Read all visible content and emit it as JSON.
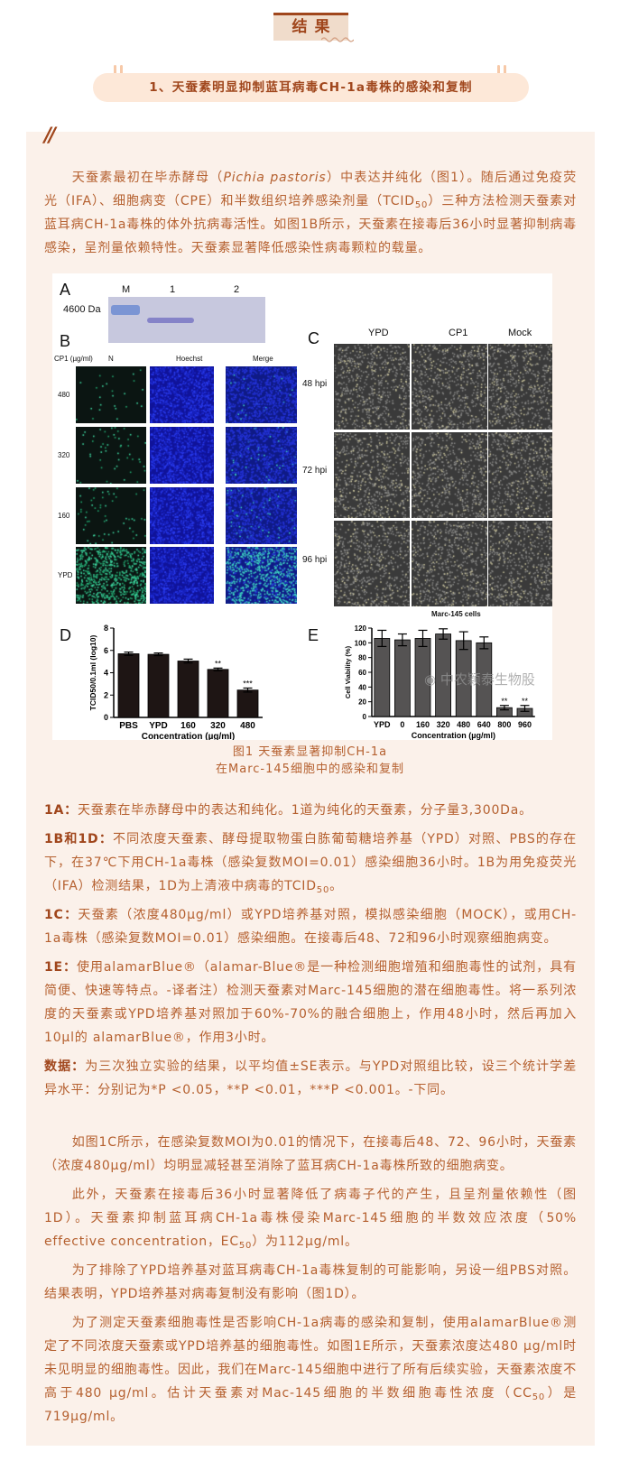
{
  "section_title": "结果",
  "subtitle": "1、天蚕素明显抑制蓝耳病毒CH-1a毒株的感染和复制",
  "quote_mark": "//",
  "intro": [
    "天蚕素最初在毕赤酵母（",
    "Pichia pastoris",
    "）中表达并纯化（图1）。随后通过免疫荧光（IFA）、细胞病变（CPE）和半数组织培养感染剂量（TCID",
    "50",
    "）三种方法检测天蚕素对蓝耳病CH-1a毒株的体外抗病毒活性。如图1B所示，天蚕素在接毒后36小时显著抑制病毒感染，呈剂量依赖特性。天蚕素显著降低感染性病毒颗粒的载量。"
  ],
  "figure": {
    "panel_a": {
      "label": "A",
      "lanes": [
        "M",
        "1",
        "2"
      ],
      "marker": "4600 Da"
    },
    "panel_b": {
      "label": "B",
      "row_header": "CP1 (µg/ml)",
      "columns": [
        "N",
        "Hoechst",
        "Merge"
      ],
      "rows": [
        "480",
        "320",
        "160",
        "YPD"
      ]
    },
    "panel_c": {
      "label": "C",
      "columns": [
        "YPD",
        "CP1",
        "Mock"
      ],
      "rows": [
        "48 hpi",
        "72 hpi",
        "96 hpi"
      ],
      "footer": "Marc-145 cells"
    },
    "watermark": "中农颖泰生物股"
  },
  "chart_data": [
    {
      "type": "bar",
      "panel": "D",
      "categories": [
        "PBS",
        "YPD",
        "160",
        "320",
        "480"
      ],
      "values": [
        5.7,
        5.65,
        5.05,
        4.3,
        2.45
      ],
      "errors": [
        0.15,
        0.12,
        0.17,
        0.12,
        0.18
      ],
      "significance": [
        "",
        "",
        "",
        "**",
        "***"
      ],
      "xlabel": "Concentration (µg/ml)",
      "ylabel": "TCID50/0.1ml (log10)",
      "ylim": [
        0,
        8
      ],
      "yticks": [
        "0",
        "2",
        "4",
        "6",
        "8"
      ],
      "bar_color": "#1e1514"
    },
    {
      "type": "bar",
      "panel": "E",
      "categories": [
        "YPD",
        "0",
        "160",
        "320",
        "480",
        "640",
        "800",
        "960"
      ],
      "values": [
        106,
        104,
        106,
        112,
        103,
        100,
        12,
        11
      ],
      "errors": [
        11,
        8,
        11,
        7,
        12,
        8,
        3,
        4
      ],
      "significance": [
        "",
        "",
        "",
        "",
        "",
        "",
        "**",
        "**"
      ],
      "xlabel": "Concentration (µg/ml)",
      "ylabel": "Cell Viability (%)",
      "ylim": [
        0,
        120
      ],
      "yticks": [
        "0",
        "20",
        "40",
        "60",
        "80",
        "100",
        "120"
      ],
      "bar_color": "#555353"
    }
  ],
  "caption": [
    "图1 天蚕素显著抑制CH-1a",
    "在Marc-145细胞中的感染和复制"
  ],
  "notes": {
    "a": {
      "label": "1A：",
      "text": "天蚕素在毕赤酵母中的表达和纯化。1道为纯化的天蚕素，分子量3,300Da。"
    },
    "bd": {
      "label": "1B和1D：",
      "text": "不同浓度天蚕素、酵母提取物蛋白胨葡萄糖培养基（YPD）对照、PBS的存在下，在37℃下用CH-1a毒株（感染复数MOI=0.01）感染细胞36小时。1B为用免疫荧光（IFA）检测结果，1D为上清液中病毒的TCID",
      "sub": "50",
      "end": "。"
    },
    "c": {
      "label": "1C：",
      "text": "天蚕素（浓度480μg/ml）或YPD培养基对照，模拟感染细胞（MOCK），或用CH-1a毒株（感染复数MOI=0.01）感染细胞。在接毒后48、72和96小时观察细胞病变。"
    },
    "e": {
      "label": "1E：",
      "text": "使用alamarBlue®（alamar-Blue®是一种检测细胞增殖和细胞毒性的试剂，具有简便、快速等特点。-译者注）检测天蚕素对Marc-145细胞的潜在细胞毒性。将一系列浓度的天蚕素或YPD培养基对照加于60%-70%的融合细胞上，作用48小时，然后再加入10μl的 alamarBlue®，作用3小时。"
    },
    "data": {
      "label": "数据：",
      "text": "为三次独立实验的结果，以平均值±SE表示。与YPD对照组比较，设三个统计学差异水平：分别记为*P <0.05，**P <0.01，***P <0.001。-下同。"
    }
  },
  "body": {
    "p1": "如图1C所示，在感染复数MOI为0.01的情况下，在接毒后48、72、96小时，天蚕素（浓度480μg/ml）均明显减轻甚至消除了蓝耳病CH-1a毒株所致的细胞病变。",
    "p2": [
      "此外，天蚕素在接毒后36小时显著降低了病毒子代的产生，且呈剂量依赖性（图1D）。天蚕素抑制蓝耳病CH-1a毒株侵染Marc-145细胞的半数效应浓度（50% effective concentration，EC",
      "50",
      "）为112μg/ml。"
    ],
    "p3": "为了排除了YPD培养基对蓝耳病毒CH-1a毒株复制的可能影响，另设一组PBS对照。结果表明，YPD培养基对病毒复制没有影响（图1D）。",
    "p4": [
      "为了测定天蚕素细胞毒性是否影响CH-1a病毒的感染和复制，使用alamarBlue®测定了不同浓度天蚕素或YPD培养基的细胞毒性。如图1E所示，天蚕素浓度达480 μg/ml时未见明显的细胞毒性。因此，我们在Marc-145细胞中进行了所有后续实验，天蚕素浓度不高于480 μg/ml。估计天蚕素对Mac-145细胞的半数细胞毒性浓度（CC",
      "50",
      "）是719μg/ml。"
    ]
  },
  "colors": {
    "accent": "#a0461c",
    "text": "#b5602f",
    "panel_bg": "#fbf1ea",
    "pill_bg": "#fde8d8"
  }
}
